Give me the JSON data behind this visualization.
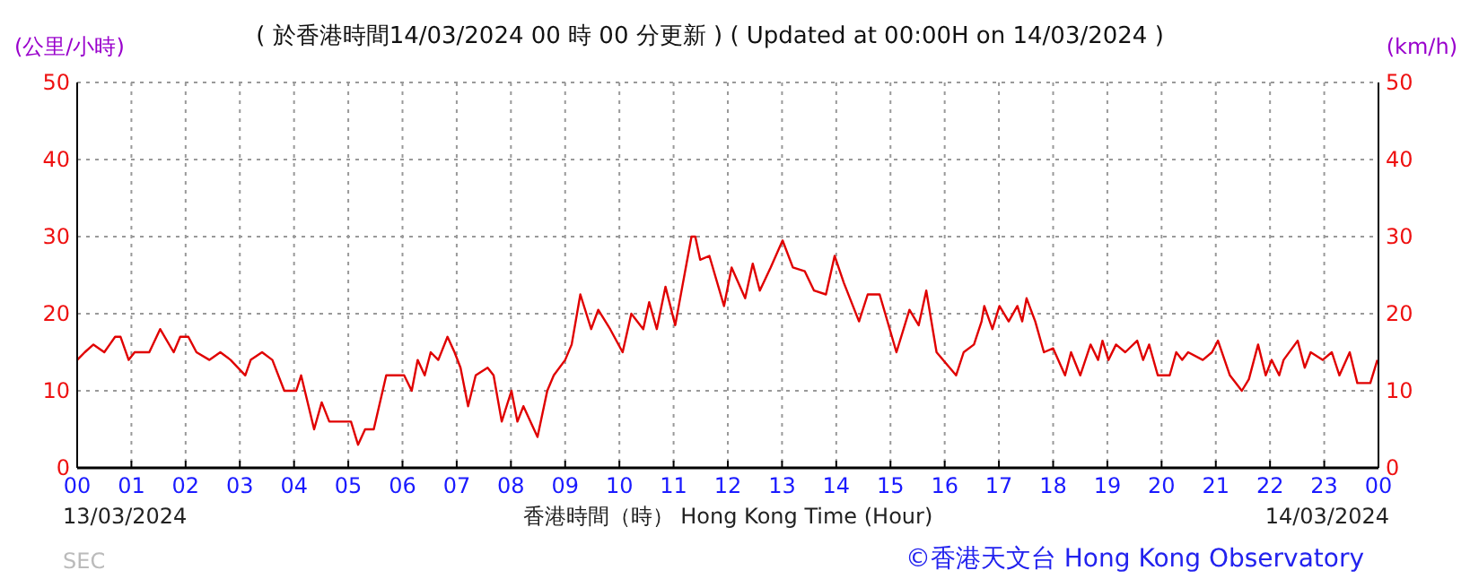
{
  "chart_data": {
    "type": "line",
    "title": "( 於香港時間14/03/2024 00 時 00 分更新 ) ( Updated at 00:00H on 14/03/2024 )",
    "xlabel": "香港時間（時） Hong Kong Time (Hour)",
    "ylabel": "(公里/小時)",
    "y2label": "(km/h)",
    "annotations": [
      "13/03/2024",
      "14/03/2024",
      "SEC",
      "©香港天文台 Hong Kong Observatory"
    ],
    "xlim": [
      0,
      24
    ],
    "xticks": [
      {
        "value": 0,
        "label": "00"
      },
      {
        "value": 1,
        "label": "01"
      },
      {
        "value": 2,
        "label": "02"
      },
      {
        "value": 3,
        "label": "03"
      },
      {
        "value": 4,
        "label": "04"
      },
      {
        "value": 5,
        "label": "05"
      },
      {
        "value": 6,
        "label": "06"
      },
      {
        "value": 7,
        "label": "07"
      },
      {
        "value": 8,
        "label": "08"
      },
      {
        "value": 9,
        "label": "09"
      },
      {
        "value": 10,
        "label": "10"
      },
      {
        "value": 11,
        "label": "11"
      },
      {
        "value": 12,
        "label": "12"
      },
      {
        "value": 13,
        "label": "13"
      },
      {
        "value": 14,
        "label": "14"
      },
      {
        "value": 15,
        "label": "15"
      },
      {
        "value": 16,
        "label": "16"
      },
      {
        "value": 17,
        "label": "17"
      },
      {
        "value": 18,
        "label": "18"
      },
      {
        "value": 19,
        "label": "19"
      },
      {
        "value": 20,
        "label": "20"
      },
      {
        "value": 21,
        "label": "21"
      },
      {
        "value": 22,
        "label": "22"
      },
      {
        "value": 23,
        "label": "23"
      },
      {
        "value": 24,
        "label": "00"
      }
    ],
    "ylim": [
      0,
      50
    ],
    "yticks": [
      0,
      10,
      20,
      30,
      40,
      50
    ],
    "y2lim": [
      0,
      50
    ],
    "y2ticks": [
      0,
      10,
      20,
      30,
      40,
      50
    ],
    "grid": true,
    "marker": "none",
    "line_style": "solid",
    "x": [
      0,
      0.14,
      0.3,
      0.5,
      0.6,
      0.7,
      0.8,
      0.95,
      1.06,
      1.33,
      1.53,
      1.78,
      1.9,
      2.05,
      2.2,
      2.44,
      2.64,
      2.83,
      3.1,
      3.2,
      3.41,
      3.6,
      3.82,
      4.04,
      4.13,
      4.37,
      4.51,
      4.65,
      4.92,
      5.05,
      5.18,
      5.31,
      5.47,
      5.7,
      6.03,
      6.17,
      6.28,
      6.41,
      6.52,
      6.66,
      6.83,
      6.96,
      7.07,
      7.21,
      7.35,
      7.57,
      7.68,
      7.83,
      8.01,
      8.12,
      8.23,
      8.49,
      8.67,
      8.79,
      9.0,
      9.12,
      9.28,
      9.48,
      9.61,
      9.83,
      10.06,
      10.22,
      10.44,
      10.55,
      10.69,
      10.85,
      11.03,
      11.16,
      11.33,
      11.4,
      11.49,
      11.66,
      11.93,
      12.07,
      12.32,
      12.46,
      12.59,
      12.79,
      13.01,
      13.2,
      13.42,
      13.59,
      13.81,
      13.97,
      14.14,
      14.42,
      14.58,
      14.8,
      15.11,
      15.35,
      15.52,
      15.66,
      15.85,
      16.21,
      16.35,
      16.54,
      16.68,
      16.73,
      16.88,
      17.01,
      17.18,
      17.34,
      17.43,
      17.51,
      17.67,
      17.83,
      18.0,
      18.22,
      18.33,
      18.5,
      18.69,
      18.83,
      18.91,
      19.02,
      19.16,
      19.33,
      19.55,
      19.66,
      19.77,
      19.93,
      20.15,
      20.27,
      20.38,
      20.49,
      20.76,
      20.93,
      21.04,
      21.26,
      21.48,
      21.61,
      21.78,
      21.92,
      22.03,
      22.17,
      22.25,
      22.51,
      22.64,
      22.75,
      22.97,
      23.14,
      23.28,
      23.47,
      23.61,
      23.85,
      23.98
    ],
    "series": [
      {
        "color": "#e00000",
        "values": [
          14,
          15,
          16,
          15,
          16,
          17,
          17,
          14,
          15,
          15,
          18,
          15,
          17,
          17,
          15,
          14,
          15,
          14,
          12,
          14,
          15,
          14,
          10,
          10,
          12,
          5,
          8.5,
          6,
          6,
          6,
          3,
          5,
          5,
          12,
          12,
          10,
          14,
          12,
          15,
          14,
          17,
          15,
          13,
          8,
          12,
          13,
          12,
          6,
          10,
          6,
          8,
          4,
          10,
          12,
          14,
          16,
          22.5,
          18,
          20.5,
          18,
          15,
          20,
          18,
          21.5,
          18,
          23.5,
          18.5,
          23.5,
          30,
          30,
          27,
          27.5,
          21,
          26,
          22,
          26.5,
          23,
          26,
          29.5,
          26,
          25.5,
          23,
          22.5,
          27.5,
          24,
          19,
          22.5,
          22.5,
          15,
          20.5,
          18.5,
          23,
          15,
          12,
          15,
          16,
          19,
          21,
          18,
          21,
          19,
          21,
          19,
          22,
          19,
          15,
          15.5,
          12,
          15,
          12,
          16,
          14,
          16.5,
          14,
          16,
          15,
          16.5,
          14,
          16,
          12,
          12,
          15,
          14,
          15,
          14,
          15,
          16.5,
          12,
          10,
          11.5,
          16,
          12,
          14,
          12,
          14,
          16.5,
          13,
          15,
          14,
          15,
          12,
          15,
          11,
          11,
          14
        ]
      }
    ]
  }
}
